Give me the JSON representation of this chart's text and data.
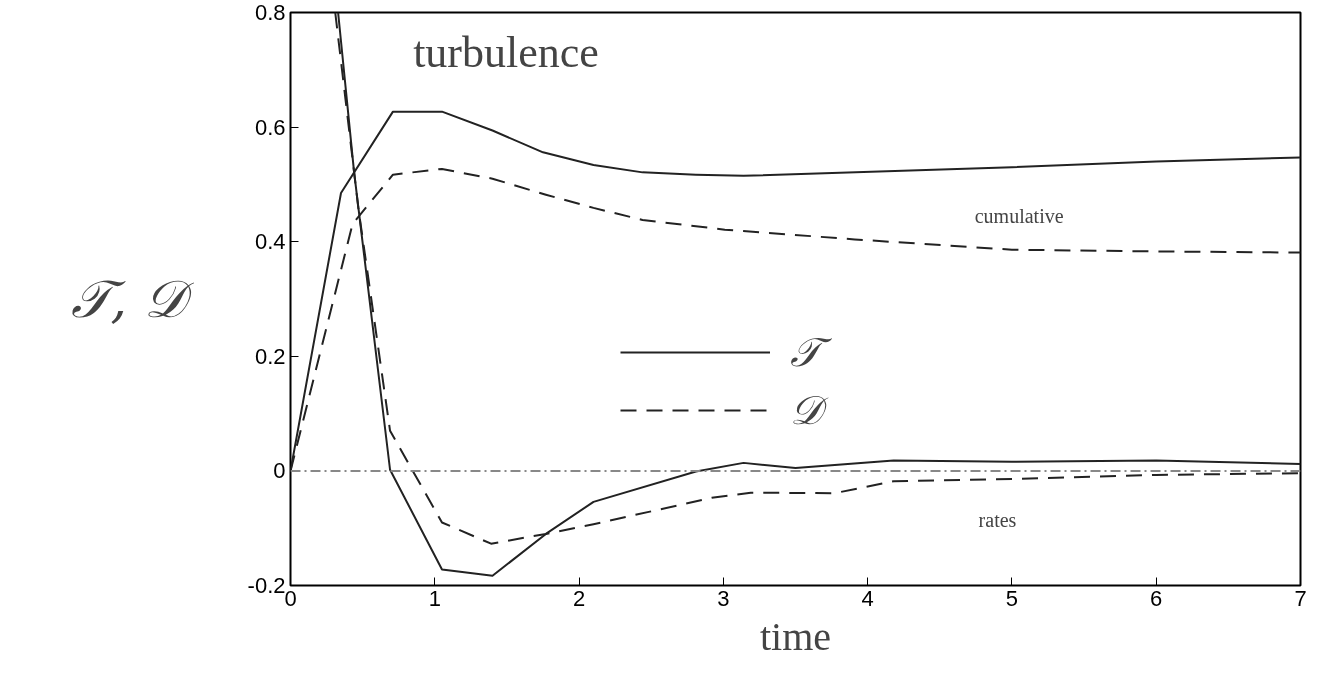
{
  "chart_data": {
    "type": "line",
    "title": "turbulence",
    "xlabel": "time",
    "ylabel": "𝒯, 𝒟",
    "xlim": [
      0,
      7
    ],
    "ylim": [
      -0.2,
      0.8
    ],
    "xticks": [
      0,
      1,
      2,
      3,
      4,
      5,
      6,
      7
    ],
    "yticks": [
      -0.2,
      0,
      0.2,
      0.4,
      0.6,
      0.8
    ],
    "grid": false,
    "legend": "center",
    "marker": "none",
    "series": [
      {
        "name": "𝒯",
        "color": "#222222",
        "line_style": "solid",
        "x": [
          0,
          0.35,
          0.71,
          1.05,
          1.4,
          1.75,
          2.1,
          2.44,
          2.81,
          3.14,
          5,
          6,
          7
        ],
        "values": [
          0,
          0.485,
          0.627,
          0.627,
          0.594,
          0.556,
          0.534,
          0.521,
          0.517,
          0.515,
          0.53,
          0.54,
          0.547
        ]
      },
      {
        "name": "𝒟",
        "color": "#222222",
        "line_style": "dashed",
        "x": [
          0,
          0.43,
          0.71,
          1.05,
          1.4,
          1.77,
          2.1,
          2.44,
          3.01,
          3.91,
          5,
          6,
          7
        ],
        "values": [
          0,
          0.431,
          0.517,
          0.527,
          0.51,
          0.482,
          0.459,
          0.438,
          0.421,
          0.404,
          0.386,
          0.383,
          0.381
        ]
      },
      {
        "color": "#222222",
        "line_style": "solid",
        "x": [
          0.33,
          0.44,
          0.69,
          1.05,
          1.4,
          1.77,
          2.1,
          2.81,
          3.14,
          3.5,
          4.18,
          5,
          6,
          7
        ],
        "values": [
          0.8,
          0.523,
          0.002,
          -0.172,
          -0.183,
          -0.11,
          -0.054,
          -0.001,
          0.014,
          0.005,
          0.018,
          0.016,
          0.018,
          0.012
        ]
      },
      {
        "color": "#222222",
        "line_style": "dashed",
        "x": [
          0.31,
          0.47,
          0.69,
          1.05,
          1.39,
          1.77,
          2.1,
          2.92,
          3.19,
          3.77,
          4.18,
          5,
          6,
          7
        ],
        "values": [
          0.8,
          0.459,
          0.07,
          -0.09,
          -0.127,
          -0.11,
          -0.093,
          -0.047,
          -0.038,
          -0.039,
          -0.018,
          -0.014,
          -0.007,
          -0.004
        ]
      }
    ],
    "ref_lines": [
      {
        "axis": "y",
        "value": 0,
        "color": "#888888",
        "line_style": "dashdot"
      }
    ],
    "annotations": [
      "cumulative",
      "rates"
    ]
  }
}
